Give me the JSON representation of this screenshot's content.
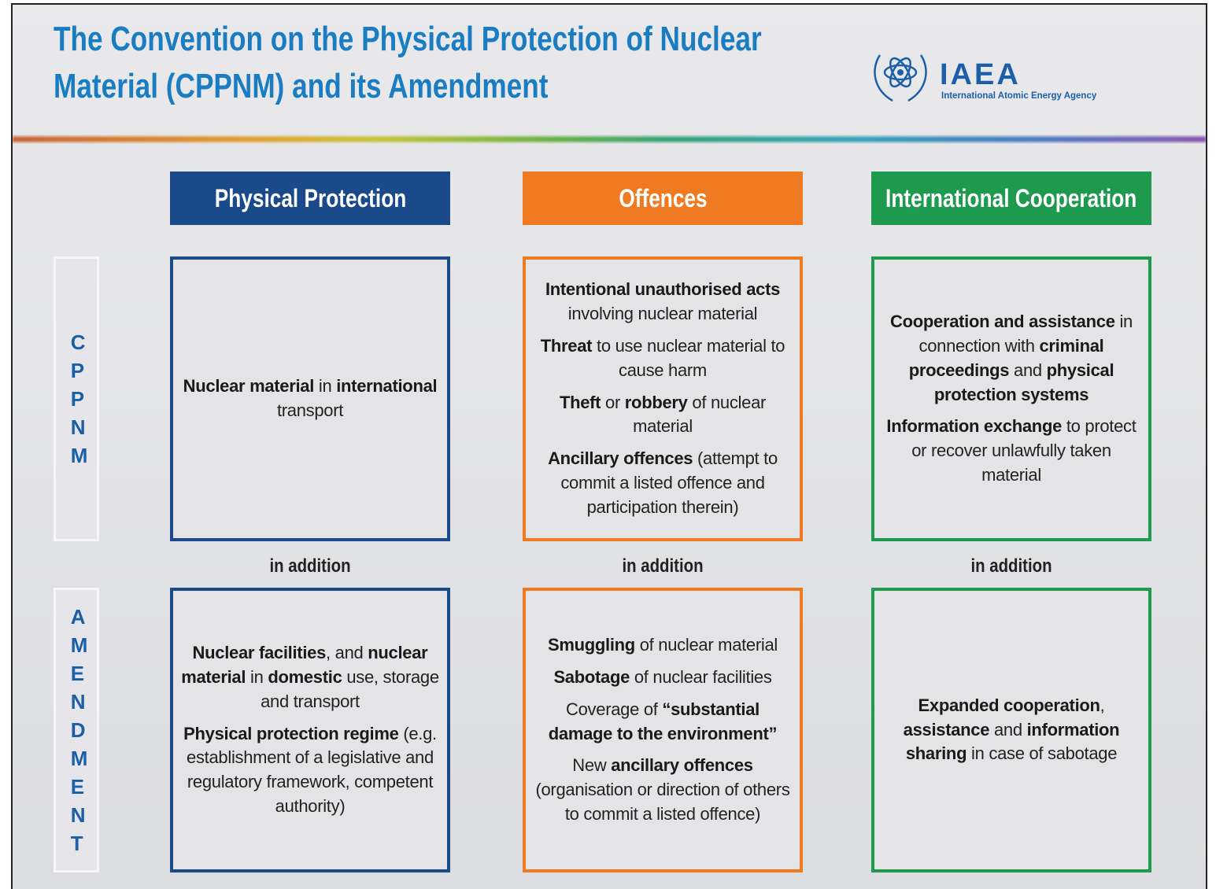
{
  "header": {
    "title_lines": [
      "The Convention on the Physical Protection of Nuclear",
      "Material (CPPNM) and its Amendment"
    ],
    "logo": {
      "name": "IAEA",
      "subtitle": "International Atomic Energy Agency"
    }
  },
  "columns": [
    {
      "title": "Physical Protection",
      "color": "#1b4a8a"
    },
    {
      "title": "Offences",
      "color": "#f07a22"
    },
    {
      "title": "International Cooperation",
      "color": "#1e9a4e"
    }
  ],
  "connector": [
    "in addition",
    "in addition",
    "in addition"
  ],
  "rows": [
    {
      "label": "CPPNM",
      "cells": [
        [
          [
            {
              "bold": "Nuclear material"
            },
            {
              "plain": " in "
            },
            {
              "bold": "international"
            },
            {
              "plain": " transport"
            }
          ]
        ],
        [
          [
            {
              "bold": "Intentional unauthorised acts"
            },
            {
              "plain": " involving nuclear material"
            }
          ],
          [
            {
              "bold": "Threat"
            },
            {
              "plain": " to use nuclear material to cause harm"
            }
          ],
          [
            {
              "bold": "Theft"
            },
            {
              "plain": " or "
            },
            {
              "bold": "robbery"
            },
            {
              "plain": " of nuclear material"
            }
          ],
          [
            {
              "bold": "Ancillary offences"
            },
            {
              "plain": " (attempt to commit a listed offence and participation therein)"
            }
          ]
        ],
        [
          [
            {
              "bold": "Cooperation and assistance"
            },
            {
              "plain": " in connection with "
            },
            {
              "bold": "criminal proceedings"
            },
            {
              "plain": " and "
            },
            {
              "bold": "physical protection systems"
            }
          ],
          [
            {
              "bold": "Information exchange"
            },
            {
              "plain": " to protect or recover unlawfully taken material"
            }
          ]
        ]
      ]
    },
    {
      "label": "AMENDMENT",
      "cells": [
        [
          [
            {
              "bold": "Nuclear facilities"
            },
            {
              "plain": ", and "
            },
            {
              "bold": "nuclear material"
            },
            {
              "plain": " in "
            },
            {
              "bold": "domestic"
            },
            {
              "plain": " use, storage and transport"
            }
          ],
          [
            {
              "bold": "Physical protection regime"
            },
            {
              "plain": " (e.g. establishment of a legislative and regulatory framework, competent authority)"
            }
          ]
        ],
        [
          [
            {
              "bold": "Smuggling"
            },
            {
              "plain": " of nuclear material"
            }
          ],
          [
            {
              "bold": "Sabotage"
            },
            {
              "plain": " of nuclear facilities"
            }
          ],
          [
            {
              "plain": "Coverage of "
            },
            {
              "bold": "“substantial damage to the environment”"
            }
          ],
          [
            {
              "plain": "New "
            },
            {
              "bold": "ancillary offences"
            },
            {
              "plain": " (organisation or direction of others to commit a listed offence)"
            }
          ]
        ],
        [
          [
            {
              "bold": "Expanded cooperation"
            },
            {
              "plain": ", "
            },
            {
              "bold": "assistance"
            },
            {
              "plain": " and "
            },
            {
              "bold": "information sharing"
            },
            {
              "plain": " in case of sabotage"
            }
          ]
        ]
      ]
    }
  ]
}
